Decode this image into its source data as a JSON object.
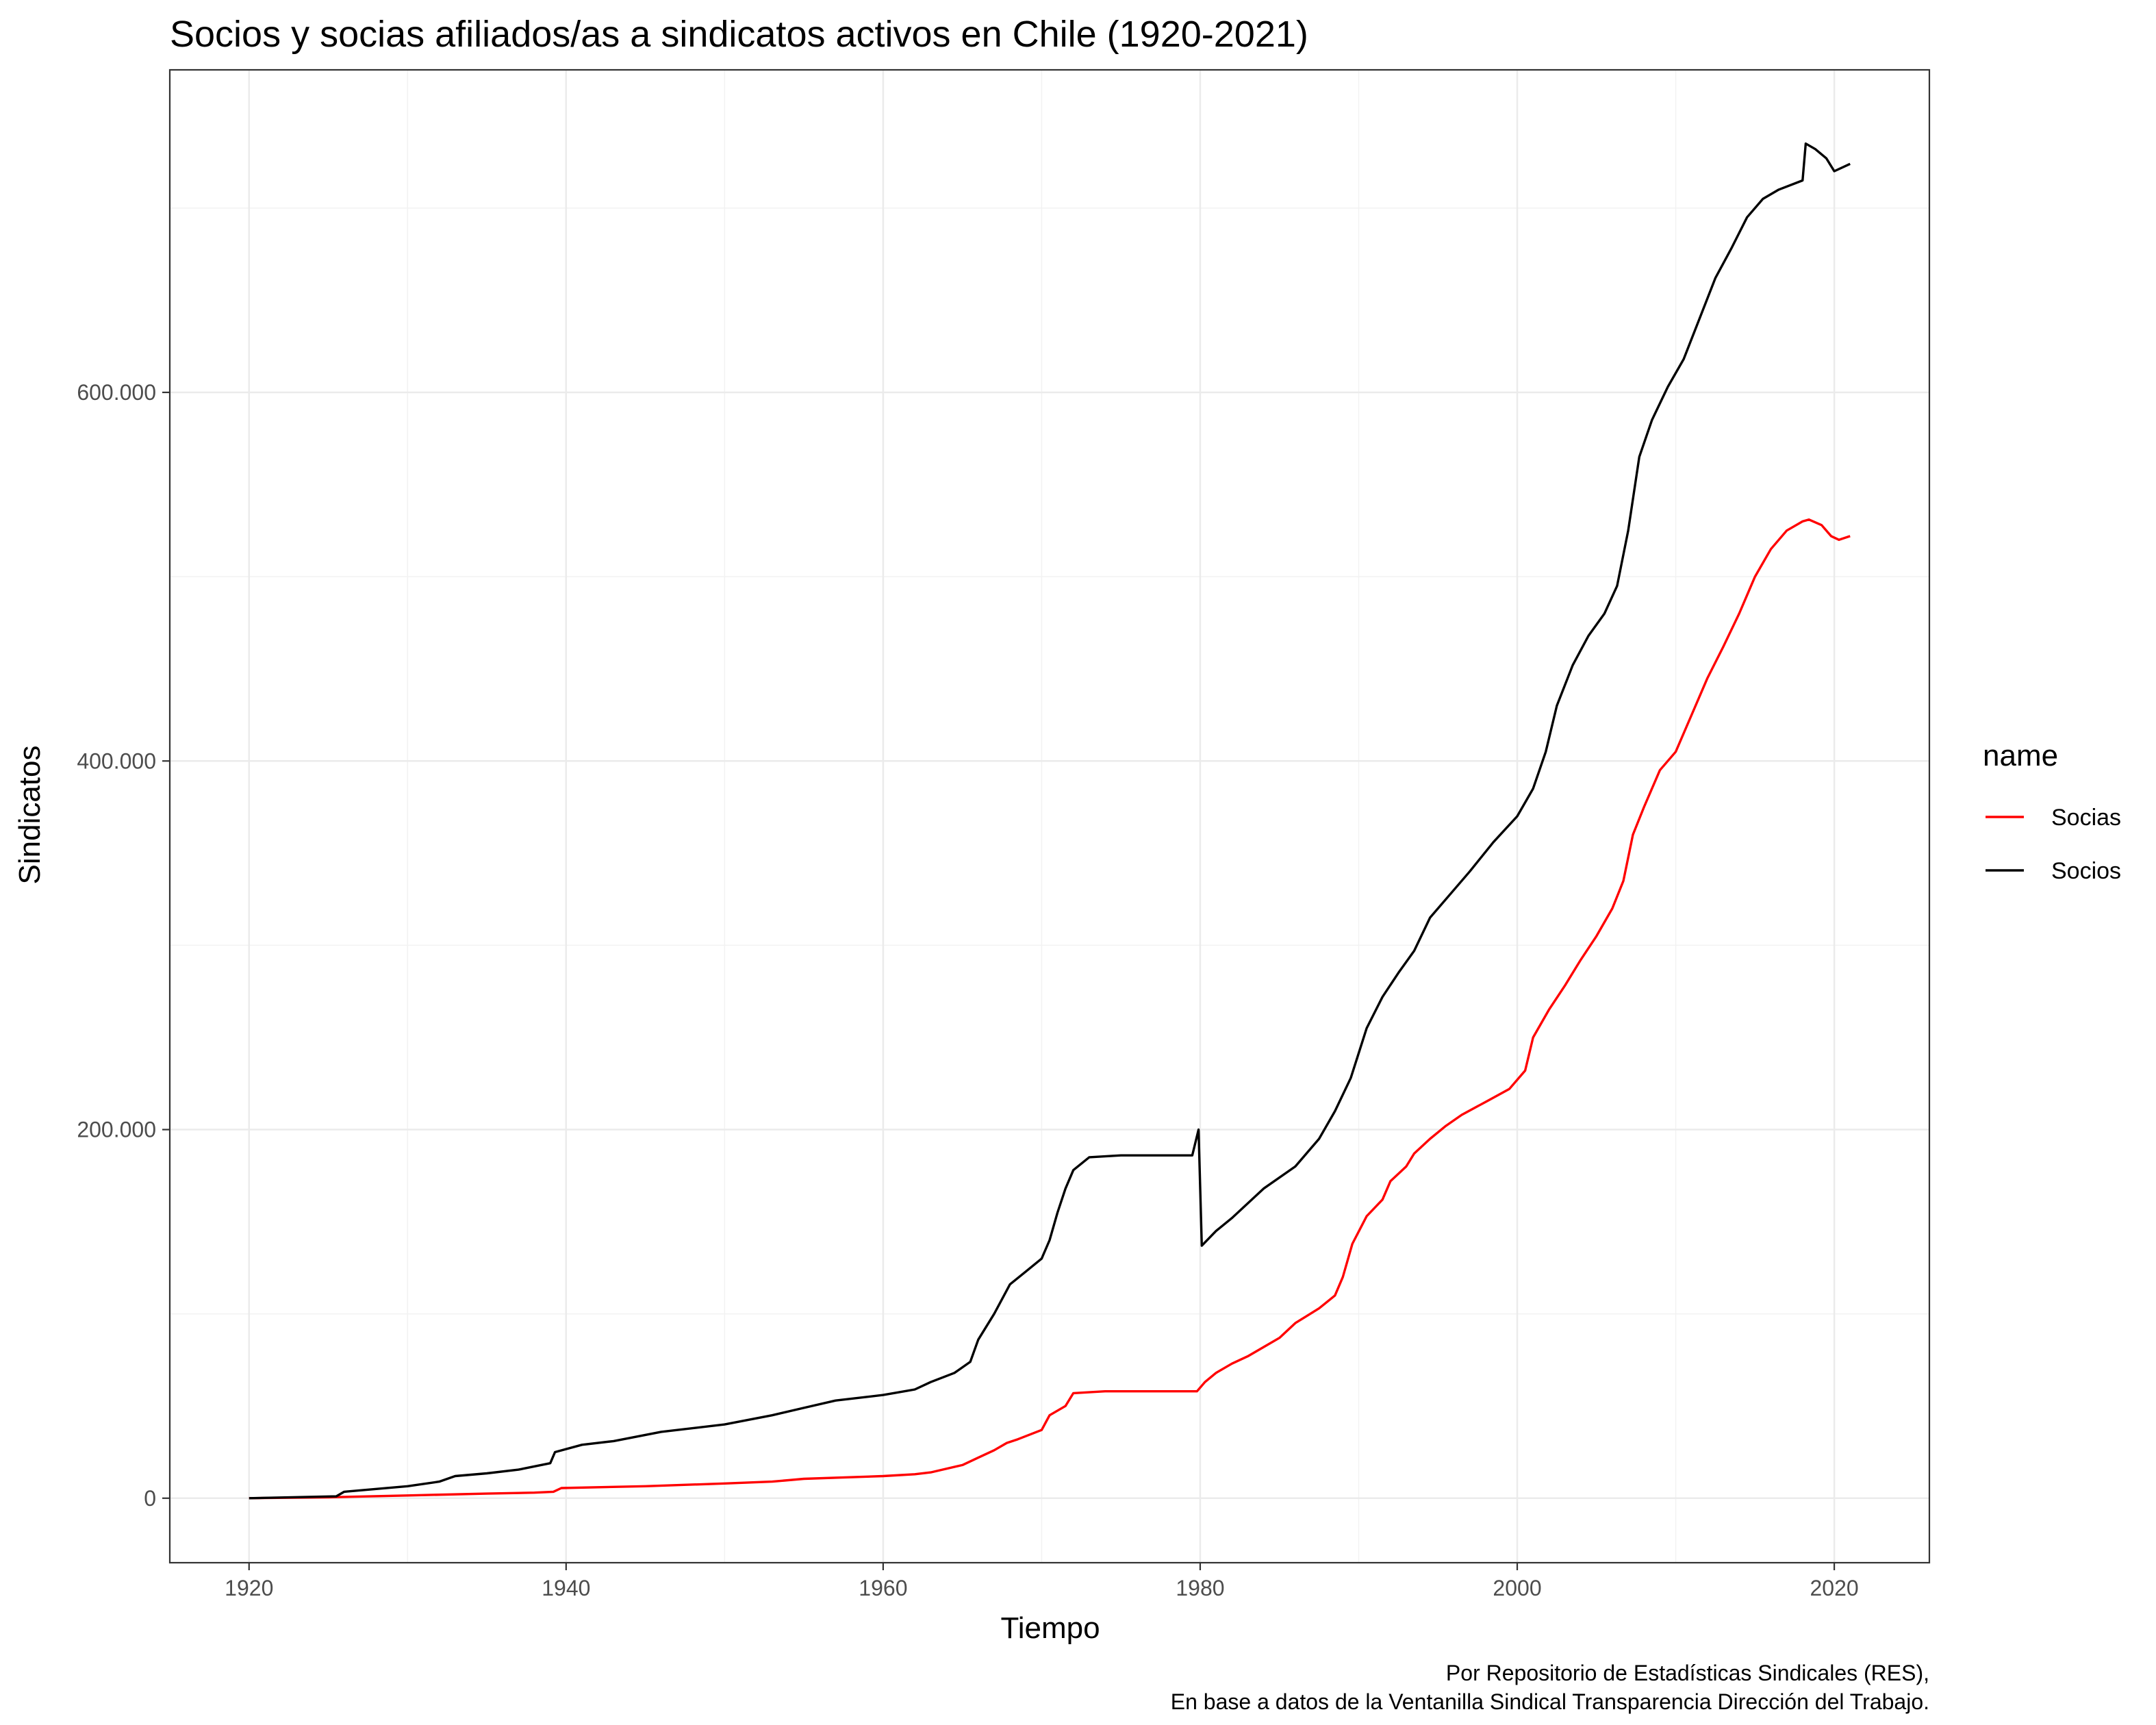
{
  "chart_data": {
    "type": "line",
    "title": "Socios y socias afiliados/as a sindicatos activos en Chile (1920-2021)",
    "xlabel": "Tiempo",
    "ylabel": "Sindicatos",
    "xlim": [
      1915,
      2026
    ],
    "ylim": [
      -35000,
      775000
    ],
    "x_ticks": [
      1920,
      1940,
      1960,
      1980,
      2000,
      2020
    ],
    "x_tick_labels": [
      "1920",
      "1940",
      "1960",
      "1980",
      "2000",
      "2020"
    ],
    "y_ticks": [
      0,
      200000,
      400000,
      600000
    ],
    "y_tick_labels": [
      "0",
      "200.000",
      "400.000",
      "600.000"
    ],
    "grid": true,
    "legend": {
      "title": "name",
      "placement": "right"
    },
    "caption": [
      "Por Repositorio de Estadísticas Sindicales (RES),",
      "En base a datos de la Ventanilla Sindical Transparencia Dirección del Trabajo."
    ],
    "series": [
      {
        "name": "Socias",
        "color": "#ff0000",
        "points": [
          [
            1920,
            0
          ],
          [
            1925,
            500
          ],
          [
            1930,
            1500
          ],
          [
            1935,
            2500
          ],
          [
            1938,
            3000
          ],
          [
            1939.2,
            3500
          ],
          [
            1939.7,
            5500
          ],
          [
            1945,
            6500
          ],
          [
            1950,
            8000
          ],
          [
            1953,
            9000
          ],
          [
            1955,
            10500
          ],
          [
            1960,
            12000
          ],
          [
            1962,
            13000
          ],
          [
            1963,
            14000
          ],
          [
            1965,
            18000
          ],
          [
            1966,
            22000
          ],
          [
            1967,
            26000
          ],
          [
            1967.8,
            30000
          ],
          [
            1968.5,
            32000
          ],
          [
            1970,
            37000
          ],
          [
            1970.5,
            45000
          ],
          [
            1971.5,
            50000
          ],
          [
            1972,
            57000
          ],
          [
            1974,
            58000
          ],
          [
            1979.8,
            58000
          ],
          [
            1980.3,
            63000
          ],
          [
            1981,
            68000
          ],
          [
            1982,
            73000
          ],
          [
            1983,
            77000
          ],
          [
            1984,
            82000
          ],
          [
            1985,
            87000
          ],
          [
            1986,
            95000
          ],
          [
            1987.5,
            103000
          ],
          [
            1988.5,
            110000
          ],
          [
            1989,
            120000
          ],
          [
            1989.6,
            138000
          ],
          [
            1990.5,
            153000
          ],
          [
            1991.5,
            162000
          ],
          [
            1992,
            172000
          ],
          [
            1993,
            180000
          ],
          [
            1993.5,
            187000
          ],
          [
            1994.5,
            195000
          ],
          [
            1995.5,
            202000
          ],
          [
            1996.5,
            208000
          ],
          [
            1998,
            215000
          ],
          [
            1999.5,
            222000
          ],
          [
            2000.5,
            232000
          ],
          [
            2001,
            250000
          ],
          [
            2002,
            265000
          ],
          [
            2003,
            278000
          ],
          [
            2004,
            292000
          ],
          [
            2005,
            305000
          ],
          [
            2006,
            320000
          ],
          [
            2006.7,
            335000
          ],
          [
            2007.3,
            360000
          ],
          [
            2008,
            375000
          ],
          [
            2009,
            395000
          ],
          [
            2010,
            405000
          ],
          [
            2011,
            425000
          ],
          [
            2012,
            445000
          ],
          [
            2013,
            462000
          ],
          [
            2014,
            480000
          ],
          [
            2015,
            500000
          ],
          [
            2016,
            515000
          ],
          [
            2017,
            525000
          ],
          [
            2018,
            530000
          ],
          [
            2018.4,
            531000
          ],
          [
            2019.2,
            528000
          ],
          [
            2019.8,
            522000
          ],
          [
            2020.3,
            520000
          ],
          [
            2021,
            522000
          ]
        ]
      },
      {
        "name": "Socios",
        "color": "#000000",
        "points": [
          [
            1920,
            0
          ],
          [
            1925.5,
            1000
          ],
          [
            1926,
            3500
          ],
          [
            1930,
            6500
          ],
          [
            1932,
            9000
          ],
          [
            1933,
            12000
          ],
          [
            1935,
            13500
          ],
          [
            1937,
            15500
          ],
          [
            1939,
            19000
          ],
          [
            1939.3,
            25000
          ],
          [
            1941,
            29000
          ],
          [
            1943,
            31000
          ],
          [
            1946,
            36000
          ],
          [
            1950,
            40000
          ],
          [
            1953,
            45000
          ],
          [
            1955,
            49000
          ],
          [
            1957,
            53000
          ],
          [
            1960,
            56000
          ],
          [
            1962,
            59000
          ],
          [
            1963,
            63000
          ],
          [
            1964.5,
            68000
          ],
          [
            1965.5,
            74000
          ],
          [
            1966,
            86000
          ],
          [
            1967,
            100000
          ],
          [
            1968,
            116000
          ],
          [
            1969,
            123000
          ],
          [
            1970,
            130000
          ],
          [
            1970.5,
            140000
          ],
          [
            1971,
            155000
          ],
          [
            1971.5,
            168000
          ],
          [
            1972,
            178000
          ],
          [
            1973,
            185000
          ],
          [
            1975,
            186000
          ],
          [
            1979.5,
            186000
          ],
          [
            1979.9,
            200000
          ],
          [
            1980.1,
            137000
          ],
          [
            1981,
            145000
          ],
          [
            1982,
            152000
          ],
          [
            1984,
            168000
          ],
          [
            1986,
            180000
          ],
          [
            1987.5,
            195000
          ],
          [
            1988.5,
            210000
          ],
          [
            1989.5,
            228000
          ],
          [
            1990.5,
            255000
          ],
          [
            1991.5,
            272000
          ],
          [
            1992.5,
            285000
          ],
          [
            1993.5,
            297000
          ],
          [
            1994.5,
            315000
          ],
          [
            1996,
            330000
          ],
          [
            1997,
            340000
          ],
          [
            1998.5,
            356000
          ],
          [
            2000,
            370000
          ],
          [
            2001,
            385000
          ],
          [
            2001.8,
            405000
          ],
          [
            2002.5,
            430000
          ],
          [
            2003.5,
            452000
          ],
          [
            2004.5,
            468000
          ],
          [
            2005.5,
            480000
          ],
          [
            2006.3,
            495000
          ],
          [
            2007,
            525000
          ],
          [
            2007.7,
            565000
          ],
          [
            2008.5,
            585000
          ],
          [
            2009.5,
            603000
          ],
          [
            2010.5,
            618000
          ],
          [
            2011.5,
            640000
          ],
          [
            2012.5,
            662000
          ],
          [
            2013.5,
            678000
          ],
          [
            2014.5,
            695000
          ],
          [
            2015.5,
            705000
          ],
          [
            2016.5,
            710000
          ],
          [
            2018,
            715000
          ],
          [
            2018.2,
            735000
          ],
          [
            2018.8,
            732000
          ],
          [
            2019.5,
            727000
          ],
          [
            2020,
            720000
          ],
          [
            2021,
            724000
          ]
        ]
      }
    ]
  }
}
